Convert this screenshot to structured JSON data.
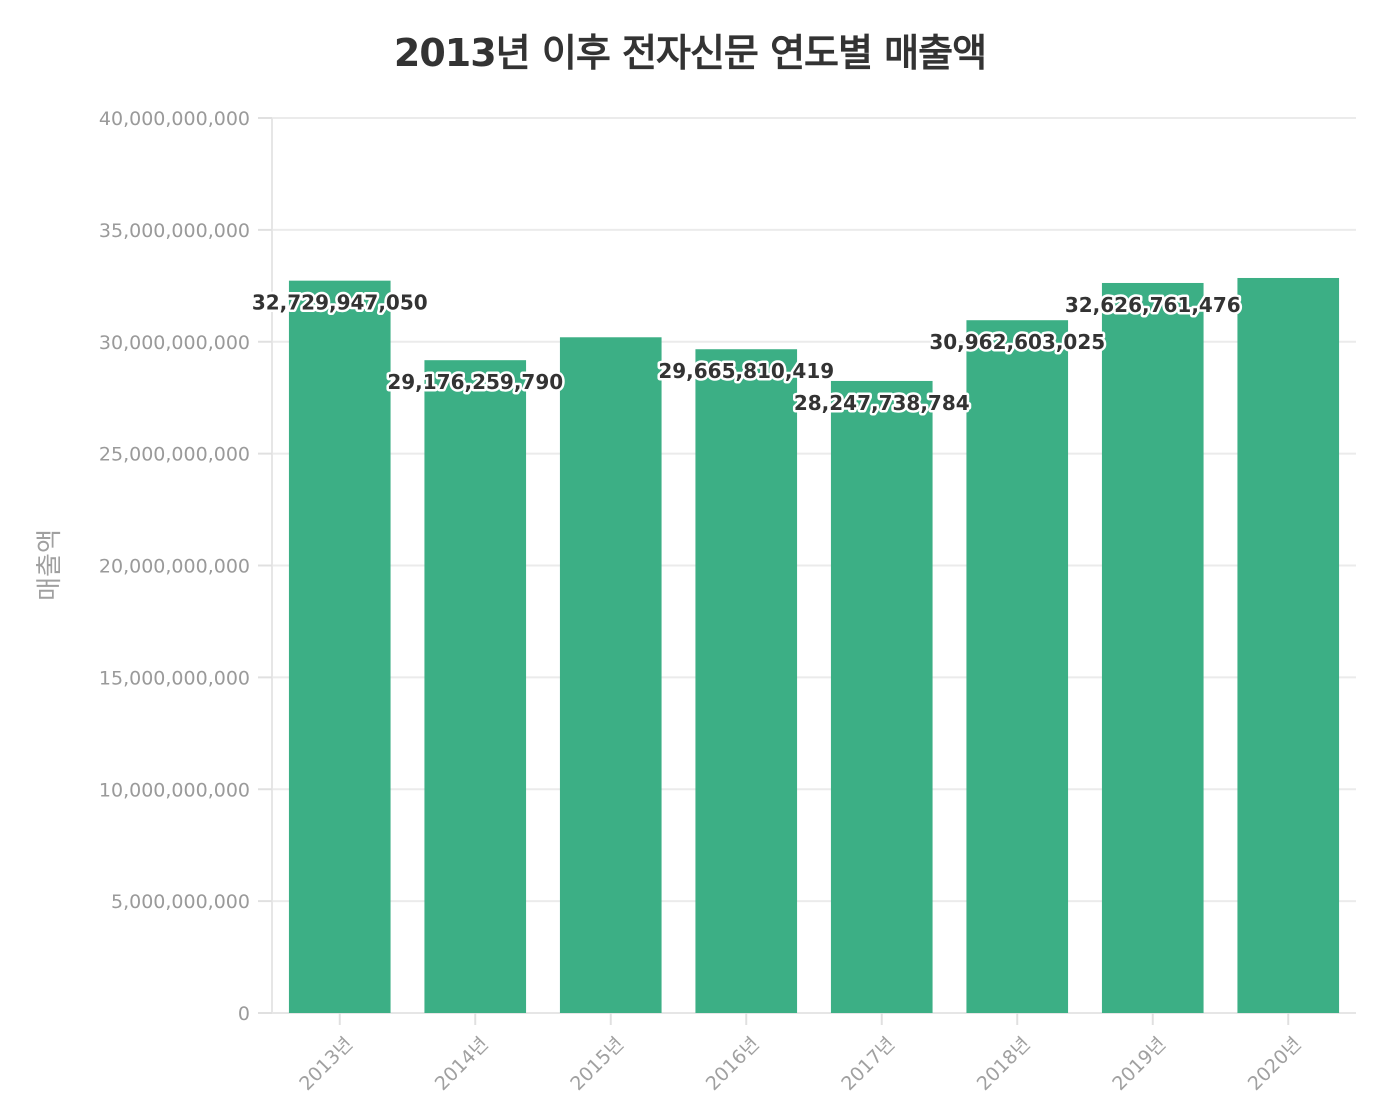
{
  "chart_data": {
    "type": "bar",
    "title": "2013년 이후 전자신문 연도별 매출액",
    "xlabel": "",
    "ylabel": "매출액",
    "categories": [
      "2013년",
      "2014년",
      "2015년",
      "2016년",
      "2017년",
      "2018년",
      "2019년",
      "2020년"
    ],
    "values": [
      32729947050,
      29176259790,
      30200000000,
      29665810419,
      28247738784,
      30962603025,
      32626761476,
      32850000000
    ],
    "data_labels": [
      "32,729,947,050",
      "29,176,259,790",
      null,
      "29,665,810,419",
      "28,247,738,784",
      "30,962,603,025",
      "32,626,761,476",
      null
    ],
    "ylim": [
      0,
      40000000000
    ],
    "yticks": [
      0,
      5000000000,
      10000000000,
      15000000000,
      20000000000,
      25000000000,
      30000000000,
      35000000000,
      40000000000
    ],
    "ytick_labels": [
      "0",
      "5,000,000,000",
      "10,000,000,000",
      "15,000,000,000",
      "20,000,000,000",
      "25,000,000,000",
      "30,000,000,000",
      "35,000,000,000",
      "40,000,000,000"
    ],
    "grid": true,
    "bar_color": "#3caf85"
  }
}
